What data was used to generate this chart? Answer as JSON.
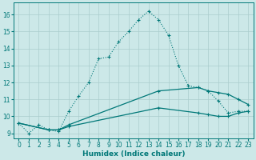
{
  "xlabel": "Humidex (Indice chaleur)",
  "background_color": "#cce8e8",
  "grid_color": "#aacccc",
  "line_color": "#007878",
  "xlim": [
    -0.5,
    23.5
  ],
  "ylim": [
    8.7,
    16.7
  ],
  "yticks": [
    9,
    10,
    11,
    12,
    13,
    14,
    15,
    16
  ],
  "xticks": [
    0,
    1,
    2,
    3,
    4,
    5,
    6,
    7,
    8,
    9,
    10,
    11,
    12,
    13,
    14,
    15,
    16,
    17,
    18,
    19,
    20,
    21,
    22,
    23
  ],
  "series1_x": [
    0,
    1,
    2,
    3,
    4,
    5,
    6,
    7,
    8,
    9,
    10,
    11,
    12,
    13,
    14,
    15,
    16,
    17,
    18,
    19,
    20,
    21,
    22,
    23
  ],
  "series1_y": [
    9.6,
    9.0,
    9.5,
    9.2,
    9.1,
    10.3,
    11.2,
    12.0,
    13.4,
    13.5,
    14.4,
    15.0,
    15.7,
    16.2,
    15.7,
    14.8,
    13.0,
    11.8,
    11.7,
    11.5,
    10.9,
    10.2,
    10.3,
    10.3
  ],
  "series2_x": [
    0,
    3,
    4,
    5,
    14,
    18,
    19,
    20,
    21,
    22,
    23
  ],
  "series2_y": [
    9.6,
    9.2,
    9.2,
    9.5,
    11.5,
    11.7,
    11.5,
    11.4,
    11.3,
    11.0,
    10.7
  ],
  "series3_x": [
    0,
    3,
    4,
    5,
    14,
    18,
    19,
    20,
    21,
    22,
    23
  ],
  "series3_y": [
    9.6,
    9.2,
    9.2,
    9.4,
    10.5,
    10.2,
    10.1,
    10.0,
    10.0,
    10.2,
    10.3
  ]
}
